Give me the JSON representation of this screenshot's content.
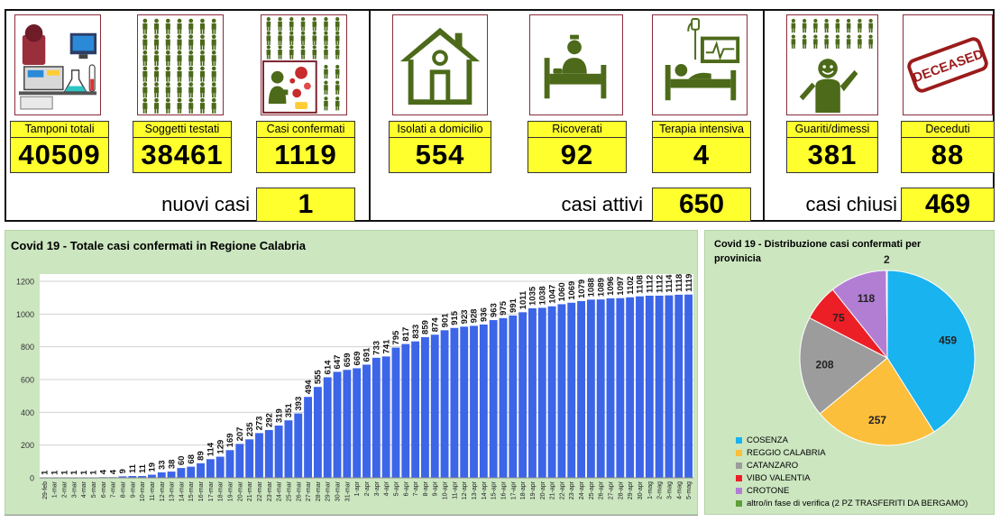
{
  "dashboard": {
    "metrics": [
      {
        "id": "tamponi",
        "label": "Tamponi totali",
        "value": "40509",
        "icon": "lab-testing-icon"
      },
      {
        "id": "soggetti",
        "label": "Soggetti testati",
        "value": "38461",
        "icon": "people-grid-icon"
      },
      {
        "id": "confermati",
        "label": "Casi confermati",
        "value": "1119",
        "icon": "virus-person-icon"
      },
      {
        "id": "isolati",
        "label": "Isolati a domicilio",
        "value": "554",
        "icon": "house-icon"
      },
      {
        "id": "ricoverati",
        "label": "Ricoverati",
        "value": "92",
        "icon": "hospital-bed-icon"
      },
      {
        "id": "terapia",
        "label": "Terapia intensiva",
        "value": "4",
        "icon": "intensive-care-icon"
      },
      {
        "id": "guariti",
        "label": "Guariti/dimessi",
        "value": "381",
        "icon": "healed-person-icon"
      },
      {
        "id": "deceduti",
        "label": "Deceduti",
        "value": "88",
        "icon": "deceased-stamp-icon"
      }
    ],
    "summaries": {
      "nuovi_casi": {
        "label": "nuovi casi",
        "value": "1"
      },
      "casi_attivi": {
        "label": "casi attivi",
        "value": "650"
      },
      "casi_chiusi": {
        "label": "casi chiusi",
        "value": "469"
      }
    },
    "stamp_text": "DECEASED"
  },
  "chart_data": [
    {
      "type": "bar",
      "title": "Covid 19 - Totale casi confermati in Regione Calabria",
      "xlabel": "",
      "ylabel": "",
      "ylim": [
        0,
        1200
      ],
      "yticks": [
        0,
        200,
        400,
        600,
        800,
        1000,
        1200
      ],
      "grid": true,
      "color": "#3c65e8",
      "categories": [
        "29-feb",
        "1-mar",
        "2-mar",
        "3-mar",
        "4-mar",
        "5-mar",
        "6-mar",
        "7-mar",
        "8-mar",
        "9-mar",
        "10-mar",
        "11-mar",
        "12-mar",
        "13-mar",
        "14-mar",
        "15-mar",
        "16-mar",
        "17-mar",
        "18-mar",
        "19-mar",
        "20-mar",
        "21-mar",
        "22-mar",
        "23-mar",
        "24-mar",
        "25-mar",
        "26-mar",
        "27-mar",
        "28-mar",
        "29-mar",
        "30-mar",
        "31-mar",
        "1-apr",
        "2-apr",
        "3-apr",
        "4-apr",
        "5-apr",
        "6-apr",
        "7-apr",
        "8-apr",
        "9-apr",
        "10-apr",
        "11-apr",
        "12-apr",
        "13-apr",
        "14-apr",
        "15-apr",
        "16-apr",
        "17-apr",
        "18-apr",
        "19-apr",
        "20-apr",
        "21-apr",
        "22-apr",
        "23-apr",
        "24-apr",
        "25-apr",
        "26-apr",
        "27-apr",
        "28-apr",
        "29-apr",
        "30-apr",
        "1-mag",
        "2-mag",
        "3-mag",
        "4-mag",
        "5-mag"
      ],
      "values": [
        1,
        1,
        1,
        1,
        1,
        1,
        4,
        4,
        9,
        11,
        11,
        19,
        33,
        38,
        60,
        68,
        89,
        114,
        129,
        169,
        207,
        235,
        273,
        292,
        319,
        351,
        393,
        494,
        555,
        614,
        647,
        659,
        669,
        691,
        733,
        741,
        795,
        817,
        833,
        859,
        874,
        901,
        915,
        923,
        928,
        936,
        963,
        975,
        991,
        1011,
        1035,
        1038,
        1047,
        1060,
        1069,
        1079,
        1088,
        1089,
        1096,
        1097,
        1102,
        1108,
        1112,
        1112,
        1114,
        1118,
        1119
      ]
    },
    {
      "type": "pie",
      "title": "Covid 19 - Distribuzione casi confermati per provinicia",
      "legend": "bottom",
      "slices": [
        {
          "label": "COSENZA",
          "value": 459,
          "color": "#19b3ef"
        },
        {
          "label": "REGGIO CALABRIA",
          "value": 257,
          "color": "#fcbf3b"
        },
        {
          "label": "CATANZARO",
          "value": 208,
          "color": "#9c9c9c"
        },
        {
          "label": "VIBO VALENTIA",
          "value": 75,
          "color": "#ec1f26"
        },
        {
          "label": "CROTONE",
          "value": 118,
          "color": "#b27ed3"
        },
        {
          "label": "altro/in fase di verifica (2 PZ TRASFERITI DA BERGAMO)",
          "value": 2,
          "color": "#5f9f3a"
        }
      ]
    }
  ]
}
